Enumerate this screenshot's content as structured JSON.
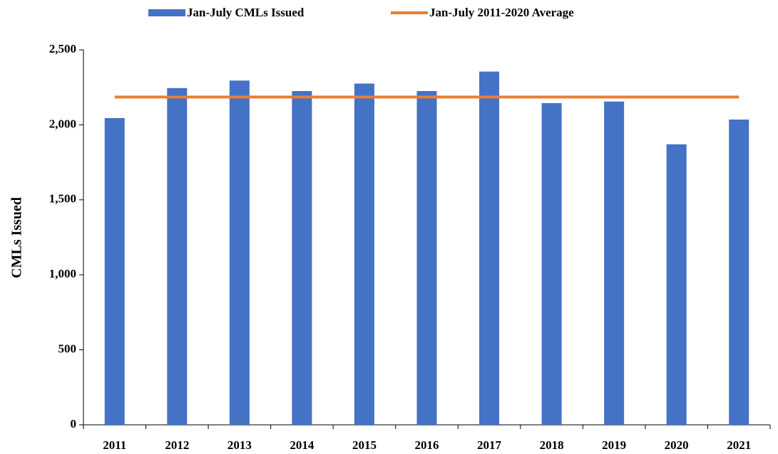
{
  "chart_data": {
    "type": "bar_line",
    "y_label": "CMLs Issued",
    "categories": [
      "2011",
      "2012",
      "2013",
      "2014",
      "2015",
      "2016",
      "2017",
      "2018",
      "2019",
      "2020",
      "2021"
    ],
    "series": [
      {
        "name": "Jan-July CMLs Issued",
        "type": "bar",
        "color": "#4472c4",
        "values": [
          2045,
          2245,
          2295,
          2225,
          2275,
          2225,
          2355,
          2145,
          2155,
          1870,
          2035
        ]
      },
      {
        "name": "Jan-July 2011-2020 Average",
        "type": "line",
        "color": "#ed7d31",
        "values": [
          2185,
          2185,
          2185,
          2185,
          2185,
          2185,
          2185,
          2185,
          2185,
          2185,
          2185
        ]
      }
    ],
    "ylim": [
      0,
      2500
    ],
    "yticks": [
      0,
      500,
      {
        "value": 1000,
        "label": "1,000"
      },
      {
        "value": 1500,
        "label": "1,500"
      },
      {
        "value": 2000,
        "label": "2,000"
      },
      {
        "value": 2500,
        "label": "2,500"
      }
    ],
    "grid": false,
    "legend": "top"
  }
}
